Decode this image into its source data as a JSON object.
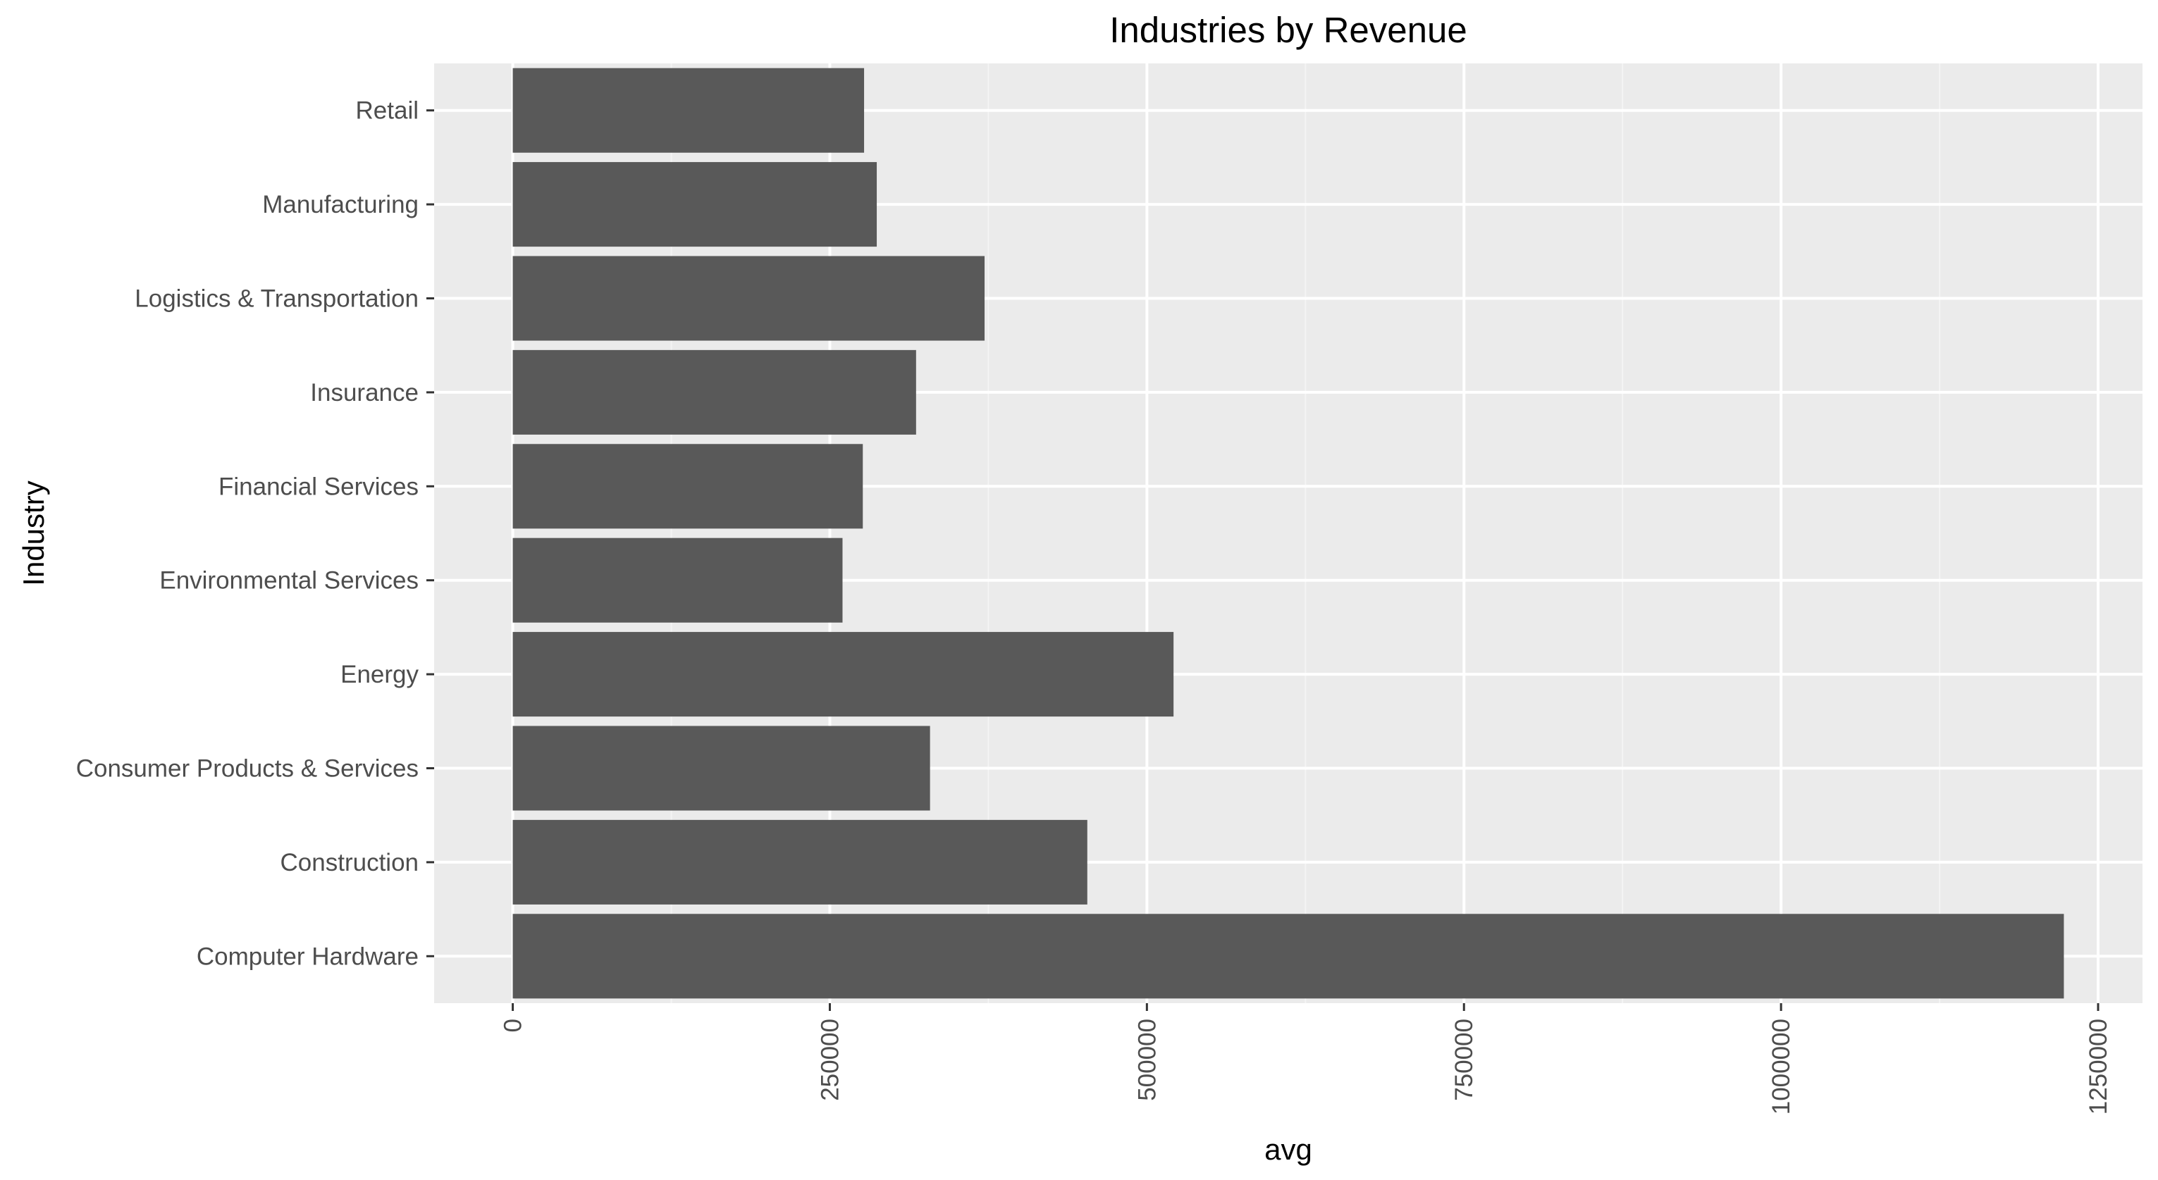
{
  "chart_data": {
    "type": "bar",
    "orientation": "horizontal",
    "title": "Industries by Revenue",
    "xlabel": "avg",
    "ylabel": "Industry",
    "categories": [
      "Computer Hardware",
      "Construction",
      "Consumer Products & Services",
      "Energy",
      "Environmental Services",
      "Financial Services",
      "Insurance",
      "Logistics & Transportation",
      "Manufacturing",
      "Retail"
    ],
    "values": [
      1223000,
      453000,
      329000,
      521000,
      260000,
      276000,
      318000,
      372000,
      287000,
      277000
    ],
    "xlim": [
      -62000,
      1285000
    ],
    "xticks": [
      0,
      250000,
      500000,
      750000,
      1000000,
      1250000
    ],
    "xtick_labels": [
      "0",
      "250000",
      "500000",
      "750000",
      "1000000",
      "1250000"
    ],
    "grid": true,
    "legend": "none",
    "colors": {
      "panel_background": "#ebebeb",
      "grid_major": "#ffffff",
      "grid_minor": "#f4f4f4",
      "bar_fill": "#595959",
      "tick_mark": "#333333"
    }
  }
}
